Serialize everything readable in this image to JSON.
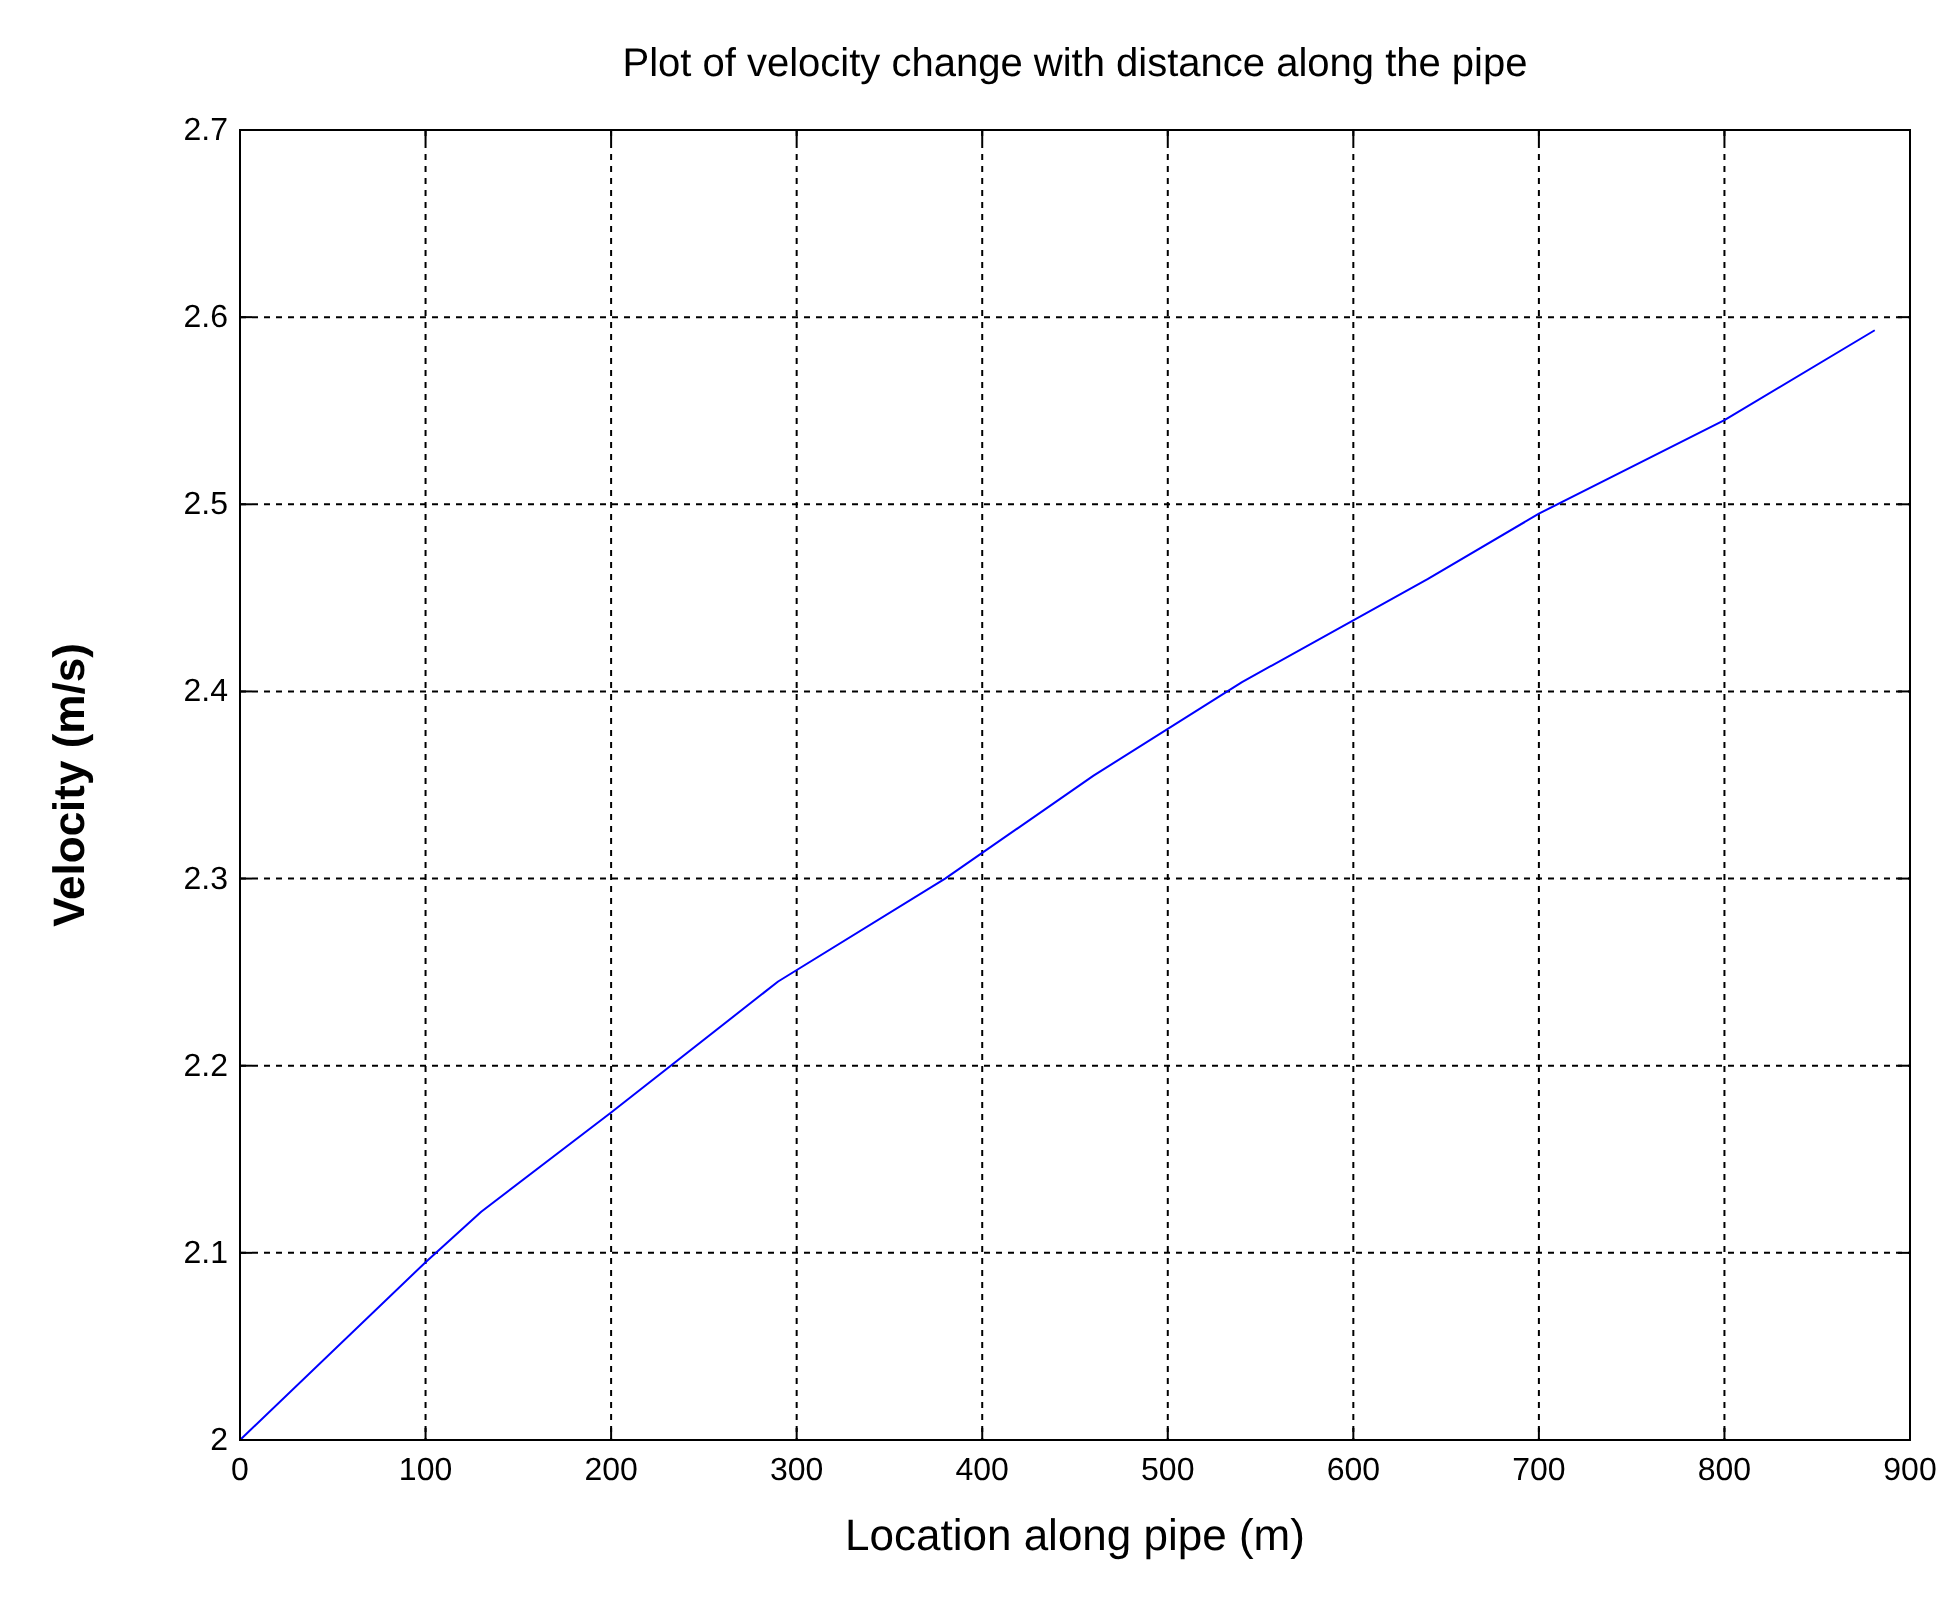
{
  "chart_data": {
    "type": "line",
    "title": "Plot of velocity change with distance along the pipe",
    "xlabel": "Location along pipe (m)",
    "ylabel": "Velocity (m/s)",
    "x": [
      0,
      100,
      130,
      200,
      290,
      380,
      460,
      540,
      640,
      700,
      800,
      881
    ],
    "series": [
      {
        "color": "#0000ff",
        "values": [
          2.0,
          2.095,
          2.122,
          2.175,
          2.245,
          2.3,
          2.355,
          2.405,
          2.46,
          2.495,
          2.545,
          2.593
        ]
      }
    ],
    "xlim": [
      0,
      900
    ],
    "xticks": [
      0,
      100,
      200,
      300,
      400,
      500,
      600,
      700,
      800,
      900
    ],
    "ylim": [
      2,
      2.7
    ],
    "yticks": [
      2,
      2.1,
      2.2,
      2.3,
      2.4,
      2.5,
      2.6,
      2.7
    ],
    "grid": true,
    "line_style": "solid",
    "marker": "none"
  }
}
